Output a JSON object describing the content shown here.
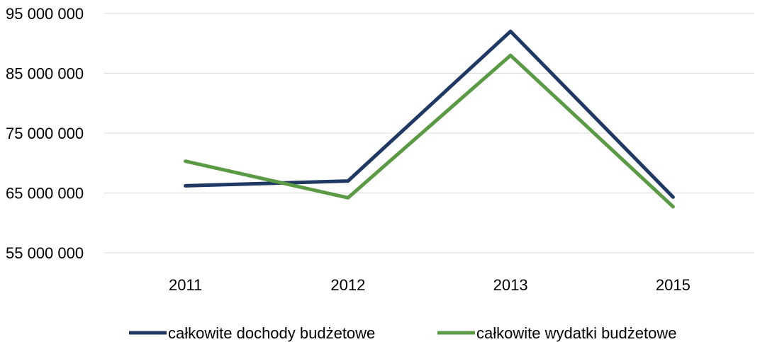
{
  "chart_data": {
    "type": "line",
    "categories": [
      "2011",
      "2012",
      "2013",
      "2015"
    ],
    "series": [
      {
        "name": "całkowite dochody budżetowe",
        "values": [
          66200000,
          67000000,
          92000000,
          64300000
        ],
        "color": "#1f3864"
      },
      {
        "name": "całkowite wydatki budżetowe",
        "values": [
          70300000,
          64200000,
          88000000,
          62700000
        ],
        "color": "#5b9a44"
      }
    ],
    "yticks": [
      55000000,
      65000000,
      75000000,
      85000000,
      95000000
    ],
    "ytick_labels": [
      "55 000 000",
      "65 000 000",
      "75 000 000",
      "85 000 000",
      "95 000 000"
    ],
    "ylim": [
      55000000,
      95000000
    ],
    "grid": true,
    "legend_position": "bottom"
  }
}
